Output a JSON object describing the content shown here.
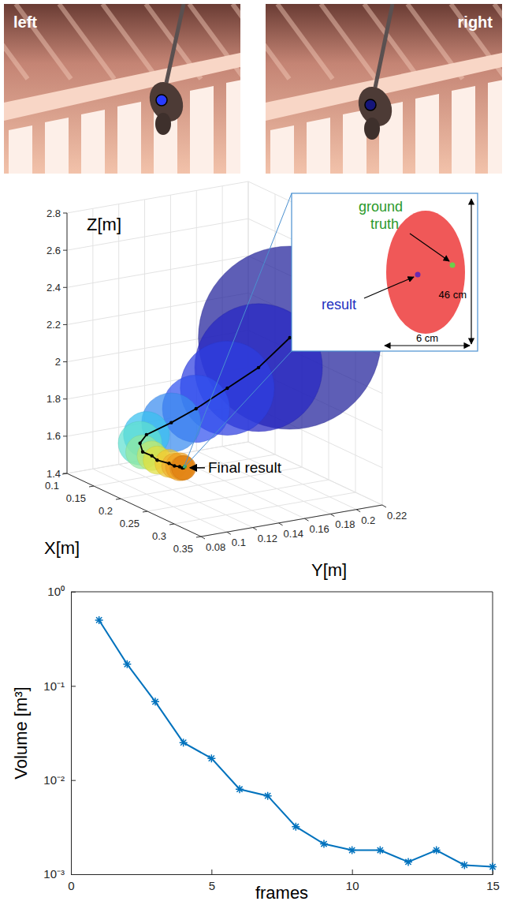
{
  "photos": [
    {
      "label": "left"
    },
    {
      "label": "right"
    }
  ],
  "chart_data": [
    {
      "type": "scatter3d",
      "x_label": "X[m]",
      "y_label": "Y[m]",
      "z_label": "Z[m]",
      "xlim": [
        0.1,
        0.35
      ],
      "xticks": [
        0.1,
        0.15,
        0.2,
        0.25,
        0.3,
        0.35
      ],
      "ylim": [
        0.08,
        0.22
      ],
      "yticks": [
        0.08,
        0.1,
        0.12,
        0.14,
        0.16,
        0.18,
        0.2,
        0.22
      ],
      "zlim": [
        1.4,
        2.8
      ],
      "zticks": [
        1.4,
        1.6,
        1.8,
        2,
        2.2,
        2.4,
        2.6,
        2.8
      ],
      "grid": true,
      "x": [
        0.25,
        0.24,
        0.23,
        0.22,
        0.21,
        0.2,
        0.2,
        0.205,
        0.21,
        0.22,
        0.23,
        0.24,
        0.245,
        0.25,
        0.25
      ],
      "y": [
        0.19,
        0.17,
        0.15,
        0.13,
        0.115,
        0.1,
        0.095,
        0.095,
        0.1,
        0.1,
        0.105,
        0.105,
        0.107,
        0.107,
        0.108
      ],
      "z": [
        2.2,
        2.05,
        1.95,
        1.85,
        1.78,
        1.72,
        1.68,
        1.64,
        1.62,
        1.61,
        1.6,
        1.6,
        1.6,
        1.6,
        1.6
      ],
      "volume": [
        0.5,
        0.17,
        0.068,
        0.025,
        0.017,
        0.008,
        0.0068,
        0.0032,
        0.0021,
        0.0018,
        0.0018,
        0.00135,
        0.0018,
        0.00125,
        0.0012
      ],
      "colors": [
        "#20209a",
        "#2626c4",
        "#2e3ee0",
        "#3252f0",
        "#3a8cf0",
        "#38c0f0",
        "#60e0d0",
        "#90e8a0",
        "#c0e870",
        "#e0e040",
        "#f0c830",
        "#f0b030",
        "#f0a020",
        "#e89020",
        "#e08010"
      ],
      "ground_truth": {
        "x": 0.252,
        "y": 0.108,
        "z": 1.61
      },
      "annotations": {
        "final_result": "Final result",
        "result": "result",
        "ground_truth": "ground truth",
        "height": "46 cm",
        "width": "6 cm"
      }
    },
    {
      "type": "line",
      "x_label": "frames",
      "y_label": "Volume [m³]",
      "x": [
        1,
        2,
        3,
        4,
        5,
        6,
        7,
        8,
        9,
        10,
        11,
        12,
        13,
        14,
        15
      ],
      "values": [
        0.5,
        0.17,
        0.068,
        0.025,
        0.017,
        0.008,
        0.0068,
        0.0032,
        0.0021,
        0.0018,
        0.0018,
        0.00135,
        0.0018,
        0.00125,
        0.0012
      ],
      "xlim": [
        0,
        15
      ],
      "xticks": [
        0,
        5,
        10,
        15
      ],
      "ylim": [
        0.001,
        1
      ],
      "yticks": [
        {
          "value": 0.001,
          "label": "10⁻³"
        },
        {
          "value": 0.01,
          "label": "10⁻²"
        },
        {
          "value": 0.1,
          "label": "10⁻¹"
        },
        {
          "value": 1,
          "label": "10⁰"
        }
      ],
      "log": "y",
      "grid": false,
      "color": "#0072bd",
      "marker": "asterisk"
    }
  ]
}
